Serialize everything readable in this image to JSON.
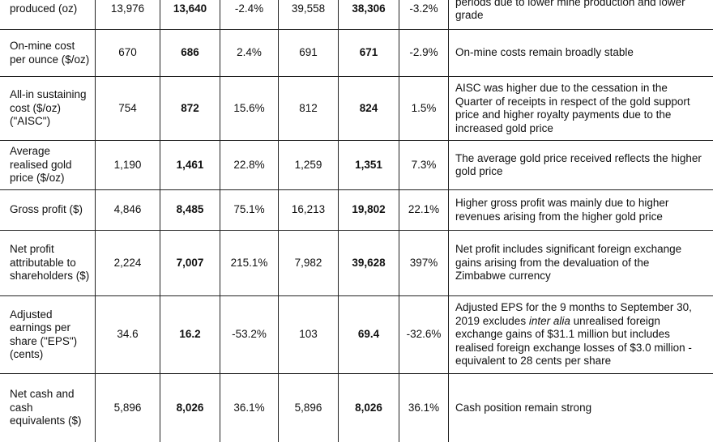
{
  "rows": [
    {
      "label": "produced (oz)",
      "values": [
        "13,976",
        "13,640",
        "-2.4%",
        "39,558",
        "38,306",
        "-3.2%"
      ],
      "comment": "periods due to lower mine production and lower grade"
    },
    {
      "label": "On-mine cost per ounce ($/oz)",
      "values": [
        "670",
        "686",
        "2.4%",
        "691",
        "671",
        "-2.9%"
      ],
      "comment": "On-mine costs remain broadly stable"
    },
    {
      "label": "All-in sustaining cost ($/oz) (\"AISC\")",
      "values": [
        "754",
        "872",
        "15.6%",
        "812",
        "824",
        "1.5%"
      ],
      "comment": "AISC was higher due to the cessation in the Quarter of receipts in respect of the gold support price and higher royalty payments due to the increased gold price"
    },
    {
      "label": "Average realised gold price ($/oz)",
      "values": [
        "1,190",
        "1,461",
        "22.8%",
        "1,259",
        "1,351",
        "7.3%"
      ],
      "comment": "The average gold price received reflects the higher gold price"
    },
    {
      "label": "Gross profit ($)",
      "values": [
        "4,846",
        "8,485",
        "75.1%",
        "16,213",
        "19,802",
        "22.1%"
      ],
      "comment": "Higher gross profit was mainly due to higher revenues arising from the higher gold price"
    },
    {
      "label": "Net profit attributable to shareholders ($)",
      "values": [
        "2,224",
        "7,007",
        "215.1%",
        "7,982",
        "39,628",
        "397%"
      ],
      "comment": "Net profit includes significant foreign exchange gains arising from the devaluation of the Zimbabwe currency"
    },
    {
      "label": "Adjusted earnings per share (\"EPS\") (cents)",
      "values": [
        "34.6",
        "16.2",
        "-53.2%",
        "103",
        "69.4",
        "-32.6%"
      ],
      "comment_parts": [
        "Adjusted EPS for the 9 months to September 30, 2019 excludes ",
        "inter alia",
        " unrealised foreign exchange gains of $31.1 million but includes realised foreign exchange losses of $3.0 million - equivalent to 28 cents per share"
      ]
    },
    {
      "label": "Net cash and cash equivalents ($)",
      "values": [
        "5,896",
        "8,026",
        "36.1%",
        "5,896",
        "8,026",
        "36.1%"
      ],
      "comment": "Cash position remain strong"
    }
  ]
}
